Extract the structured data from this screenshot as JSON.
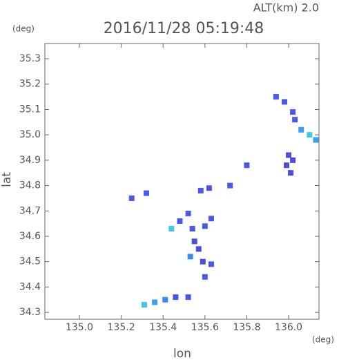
{
  "chart_data": {
    "type": "scatter",
    "title": "2016/11/28 05:19:48",
    "subtitle": "ALT(km) 2.0",
    "y_unit": "(deg)",
    "x_unit": "(deg)",
    "x_label": "lon",
    "y_label": "lat",
    "xlim": [
      134.835,
      136.145
    ],
    "ylim": [
      34.273,
      35.36
    ],
    "xticks": [
      {
        "value": 135,
        "label": "135.0"
      },
      135.2,
      135.4,
      135.6,
      135.8,
      {
        "value": 136,
        "label": "136.0"
      }
    ],
    "yticks": [
      34.3,
      34.4,
      34.5,
      34.6,
      34.7,
      34.8,
      34.9,
      {
        "value": 35,
        "label": "35.0"
      },
      35.1,
      35.2,
      35.3
    ],
    "x": [
      135.94,
      135.98,
      136.02,
      136.03,
      136.06,
      136.1,
      136.13,
      136.0,
      136.02,
      135.99,
      136.01,
      135.8,
      135.72,
      135.62,
      135.58,
      135.32,
      135.25,
      135.52,
      135.48,
      135.44,
      135.54,
      135.63,
      135.6,
      135.55,
      135.57,
      135.53,
      135.59,
      135.63,
      135.6,
      135.31,
      135.36,
      135.41,
      135.46,
      135.52
    ],
    "y": [
      35.15,
      35.13,
      35.09,
      35.06,
      35.02,
      35.0,
      34.98,
      34.92,
      34.9,
      34.88,
      34.85,
      34.88,
      34.8,
      34.79,
      34.78,
      34.77,
      34.75,
      34.69,
      34.66,
      34.63,
      34.63,
      34.67,
      34.64,
      34.58,
      34.55,
      34.52,
      34.5,
      34.49,
      34.44,
      34.33,
      34.34,
      34.35,
      34.36,
      34.36
    ],
    "colors": [
      "#4a5ae8",
      "#4a5ae8",
      "#4a5ae8",
      "#4a5ae8",
      "#3aa0f0",
      "#40c8e8",
      "#3aa0f0",
      "#4a4ed8",
      "#4a4ed8",
      "#4a4ed8",
      "#4a4ed8",
      "#4a5ae8",
      "#4a5ae8",
      "#4a5ae8",
      "#4a5ae8",
      "#4a5ae8",
      "#4a5ae8",
      "#4a5ae8",
      "#4a5ae8",
      "#40c8e8",
      "#4a5ae8",
      "#4a5ae8",
      "#4a5ae8",
      "#4a4ed8",
      "#4a4ed8",
      "#3a8cf0",
      "#4a4ed8",
      "#4a5ae8",
      "#4a5ae8",
      "#40c8e8",
      "#3aa0f0",
      "#3a8cf0",
      "#4a5ae8",
      "#4a5ae8"
    ]
  }
}
